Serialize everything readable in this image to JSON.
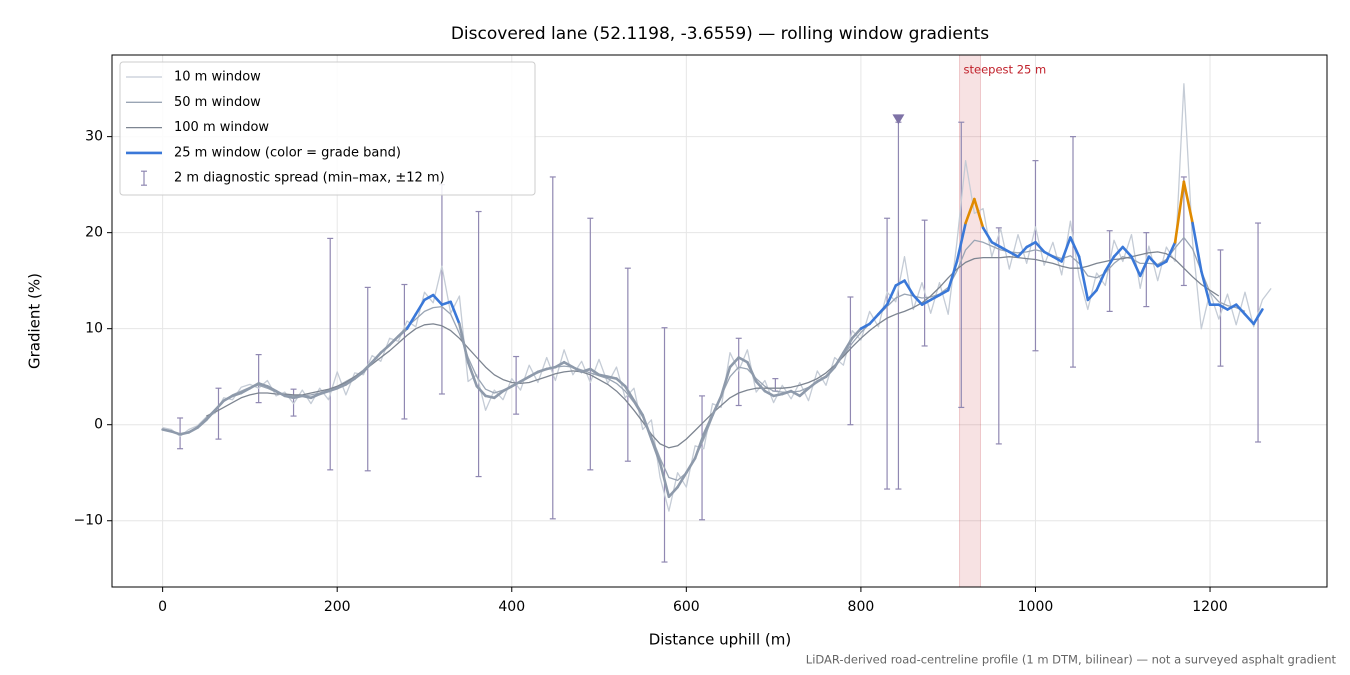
{
  "chart_data": {
    "type": "line",
    "title": "Discovered lane (52.1198, -3.6559) — rolling window gradients",
    "x_label": "Distance uphill (m)",
    "y_label": "Gradient (%)",
    "footnote": "LiDAR-derived road-centreline profile (1 m DTM, bilinear) — not a surveyed asphalt gradient",
    "xlim": [
      -58,
      1334
    ],
    "ylim": [
      -16.9,
      38.5
    ],
    "xticks": [
      0,
      200,
      400,
      600,
      800,
      1000,
      1200
    ],
    "yticks": [
      {
        "value": -10,
        "label": "−10"
      },
      0,
      10,
      20,
      30
    ],
    "grid": true,
    "legend": "upper left",
    "x": [
      0,
      10,
      20,
      30,
      40,
      50,
      60,
      70,
      80,
      90,
      100,
      110,
      120,
      130,
      140,
      150,
      160,
      170,
      180,
      190,
      200,
      210,
      220,
      230,
      240,
      250,
      260,
      270,
      280,
      290,
      300,
      310,
      320,
      330,
      340,
      350,
      360,
      370,
      380,
      390,
      400,
      410,
      420,
      430,
      440,
      450,
      460,
      470,
      480,
      490,
      500,
      510,
      520,
      530,
      540,
      550,
      560,
      570,
      580,
      590,
      600,
      610,
      620,
      630,
      640,
      650,
      660,
      670,
      680,
      690,
      700,
      710,
      720,
      730,
      740,
      750,
      760,
      770,
      780,
      790,
      800,
      810,
      820,
      830,
      840,
      850,
      860,
      870,
      880,
      890,
      900,
      910,
      920,
      930,
      940,
      950,
      960,
      970,
      980,
      990,
      1000,
      1010,
      1020,
      1030,
      1040,
      1050,
      1060,
      1070,
      1080,
      1090,
      1100,
      1110,
      1120,
      1130,
      1140,
      1150,
      1160,
      1170,
      1180,
      1190,
      1200,
      1210,
      1220,
      1230,
      1240,
      1250,
      1260,
      1270
    ],
    "series": [
      {
        "name": "10 m window",
        "color": "#c5ccd6",
        "width": 1.3,
        "values": [
          -0.3,
          -0.5,
          -1.2,
          -0.5,
          -0.1,
          0.8,
          1.2,
          2.8,
          2.6,
          3.9,
          4.2,
          3.8,
          4.6,
          3,
          3.4,
          2.2,
          3.6,
          2.2,
          3.8,
          2.6,
          5.5,
          3.1,
          5.4,
          5.2,
          7.2,
          6.6,
          9,
          8.7,
          10.8,
          10.2,
          13.8,
          12.7,
          16.5,
          11.6,
          13.4,
          4.5,
          5.2,
          1.5,
          3.6,
          2.6,
          4.8,
          3.6,
          6.2,
          4.4,
          7,
          4.6,
          7.8,
          5.2,
          6.6,
          4.4,
          6.8,
          4.3,
          6,
          2.8,
          3.8,
          -0.5,
          0.5,
          -5.5,
          -9,
          -5,
          -6.5,
          -2.2,
          -2.5,
          2.2,
          1.8,
          7.5,
          5.6,
          7.8,
          3.4,
          4.6,
          2.3,
          4.1,
          2.7,
          4.4,
          2.5,
          5.6,
          4.1,
          7,
          6.2,
          9.8,
          8.8,
          11.8,
          10.2,
          13.8,
          12.8,
          17.5,
          12,
          14.8,
          11.6,
          14.8,
          11.5,
          19,
          27.5,
          22,
          22.5,
          17.5,
          20.4,
          16.2,
          19.8,
          16.8,
          20.6,
          16.6,
          19,
          15.6,
          21.2,
          15.4,
          12,
          15.8,
          14.5,
          19.2,
          17,
          19.8,
          14.2,
          18.6,
          15,
          18.5,
          17,
          35.5,
          19,
          10,
          13.8,
          11,
          13.6,
          10.4,
          13.8,
          10.2,
          13,
          14.2
        ]
      },
      {
        "name": "50 m window",
        "color": "#9aa5b4",
        "width": 1.3,
        "values": [
          null,
          null,
          null,
          -0.8,
          -0.2,
          0.7,
          1.6,
          2.5,
          3.1,
          3.5,
          3.9,
          4.1,
          3.8,
          3.4,
          3.1,
          3,
          3,
          3.1,
          3.3,
          3.6,
          4,
          4.5,
          5,
          5.7,
          6.6,
          7.5,
          8.4,
          9.3,
          10.2,
          11,
          11.8,
          12.2,
          12.3,
          11.5,
          9.5,
          7,
          5,
          3.7,
          3.3,
          3.6,
          4,
          4.5,
          5,
          5.4,
          5.8,
          6,
          6.1,
          6,
          5.7,
          5.4,
          5.1,
          4.8,
          4.3,
          3.5,
          2.3,
          0.8,
          -1.2,
          -3.5,
          -5.5,
          -5.8,
          -5,
          -3.5,
          -1.5,
          0.8,
          3,
          5,
          6,
          5.8,
          4.8,
          4,
          3.5,
          3.4,
          3.4,
          3.5,
          3.9,
          4.4,
          5,
          6,
          7.2,
          8.5,
          9.6,
          10.5,
          11.4,
          12.3,
          13.2,
          13.6,
          13.4,
          13.2,
          13.3,
          13.6,
          14.3,
          16,
          18.2,
          19.2,
          19,
          18.6,
          18.2,
          18,
          17.9,
          18,
          18.2,
          18,
          17.6,
          17.3,
          17.6,
          16.8,
          15.5,
          15.3,
          15.8,
          16.8,
          17.5,
          17.3,
          16.8,
          16.8,
          16.7,
          17.2,
          18.4,
          19.5,
          18.3,
          16,
          13.8,
          12.8,
          12.4,
          12.2,
          11.8,
          null,
          null,
          null
        ]
      },
      {
        "name": "100 m window",
        "color": "#7d8591",
        "width": 1.3,
        "values": [
          null,
          null,
          null,
          null,
          null,
          0.9,
          1.3,
          1.8,
          2.3,
          2.8,
          3.1,
          3.3,
          3.3,
          3.2,
          3.2,
          3.1,
          3.1,
          3.3,
          3.5,
          3.7,
          4,
          4.4,
          5,
          5.6,
          6.3,
          7,
          7.7,
          8.5,
          9.3,
          10,
          10.4,
          10.5,
          10.3,
          9.8,
          9,
          8,
          7,
          6,
          5.2,
          4.7,
          4.4,
          4.3,
          4.4,
          4.7,
          5,
          5.3,
          5.5,
          5.6,
          5.5,
          5.2,
          4.7,
          4.2,
          3.5,
          2.6,
          1.5,
          0.3,
          -1,
          -2,
          -2.4,
          -2.2,
          -1.5,
          -0.6,
          0.3,
          1.2,
          2,
          2.8,
          3.3,
          3.6,
          3.8,
          3.8,
          3.8,
          3.8,
          3.9,
          4.1,
          4.4,
          4.8,
          5.4,
          6.2,
          7.1,
          8.1,
          9,
          9.8,
          10.5,
          11.1,
          11.5,
          11.8,
          12.2,
          12.7,
          13.4,
          14.3,
          15.3,
          16.2,
          16.9,
          17.3,
          17.4,
          17.4,
          17.4,
          17.5,
          17.4,
          17.3,
          17.2,
          17,
          16.8,
          16.5,
          16.3,
          16.3,
          16.5,
          16.8,
          17,
          17.2,
          17.3,
          17.5,
          17.7,
          17.9,
          18,
          17.8,
          17.2,
          16.3,
          15.4,
          14.6,
          14,
          13.4,
          null,
          null,
          null,
          null,
          null,
          null
        ]
      },
      {
        "name": "25 m window (color = grade band)",
        "color": "#3a78d8",
        "base_color": "#8e9aab",
        "width": 2.6,
        "bands": [
          {
            "from": 10,
            "color": "#3a78d8"
          },
          {
            "from": 20,
            "color": "#e08a00"
          },
          {
            "from": 25,
            "color": "#c0202a"
          }
        ],
        "values": [
          -0.5,
          -0.7,
          -1,
          -0.8,
          -0.3,
          0.5,
          1.5,
          2.5,
          3,
          3.3,
          3.8,
          4.3,
          4,
          3.5,
          3,
          2.8,
          3,
          2.8,
          3.2,
          3.5,
          3.8,
          4.2,
          4.8,
          5.5,
          6.5,
          7.5,
          8.3,
          9.2,
          10,
          11.5,
          13,
          13.5,
          12.5,
          12.8,
          10.5,
          6.5,
          4,
          3,
          2.8,
          3.5,
          4,
          4.5,
          5,
          5.5,
          5.8,
          6,
          6.5,
          6,
          5.5,
          5.8,
          5.2,
          5,
          4.8,
          4,
          2.5,
          1,
          -1.5,
          -4,
          -7.5,
          -6.5,
          -5,
          -3.5,
          -1,
          1,
          3,
          6,
          7,
          6.5,
          4.5,
          3.5,
          3,
          3.2,
          3.5,
          3,
          3.8,
          4.5,
          5,
          6,
          7.5,
          9,
          10,
          10.5,
          11.5,
          12.5,
          14.5,
          15,
          13.5,
          12.5,
          13,
          13.5,
          14,
          17,
          21,
          23.5,
          20.5,
          19,
          18.5,
          18,
          17.5,
          18.5,
          19,
          18,
          17.5,
          17,
          19.5,
          17.5,
          13,
          14,
          16,
          17.5,
          18.5,
          17.5,
          15.5,
          17.5,
          16.5,
          17,
          19,
          25.3,
          21,
          16,
          12.5,
          12.5,
          12,
          12.5,
          11.5,
          10.5,
          12,
          null
        ]
      }
    ],
    "spread": {
      "name": "2 m diagnostic spread (min–max, ±12 m)",
      "color": "#9088b2",
      "x": [
        20,
        64,
        110,
        150,
        192,
        235,
        277,
        320,
        362,
        405,
        447,
        490,
        533,
        575,
        618,
        660,
        702,
        788,
        830,
        843,
        873,
        915,
        958,
        1000,
        1043,
        1085,
        1127,
        1170,
        1212,
        1255
      ],
      "low": [
        -2.5,
        -1.5,
        2.3,
        0.9,
        -4.7,
        -4.8,
        0.6,
        3.2,
        -5.4,
        1.1,
        -9.8,
        -4.7,
        -3.8,
        -14.3,
        -9.9,
        2,
        3.5,
        0,
        -6.7,
        -6.7,
        8.2,
        1.8,
        -2,
        7.7,
        6,
        11.8,
        12.3,
        14.5,
        6.1,
        -1.8
      ],
      "high": [
        0.7,
        3.8,
        7.3,
        3.7,
        19.4,
        14.3,
        14.6,
        25,
        22.2,
        7.1,
        25.8,
        21.5,
        16.3,
        10.1,
        3,
        9,
        4.8,
        13.3,
        21.5,
        31.5,
        21.3,
        31.5,
        20.5,
        27.5,
        30,
        20.2,
        20,
        25.8,
        18.2,
        21
      ]
    },
    "marker": {
      "x": 843,
      "y": 31.8,
      "color": "#7e72a6"
    },
    "span": {
      "from": 913,
      "to": 937,
      "label": "steepest 25 m",
      "color": "#c0202a"
    }
  }
}
